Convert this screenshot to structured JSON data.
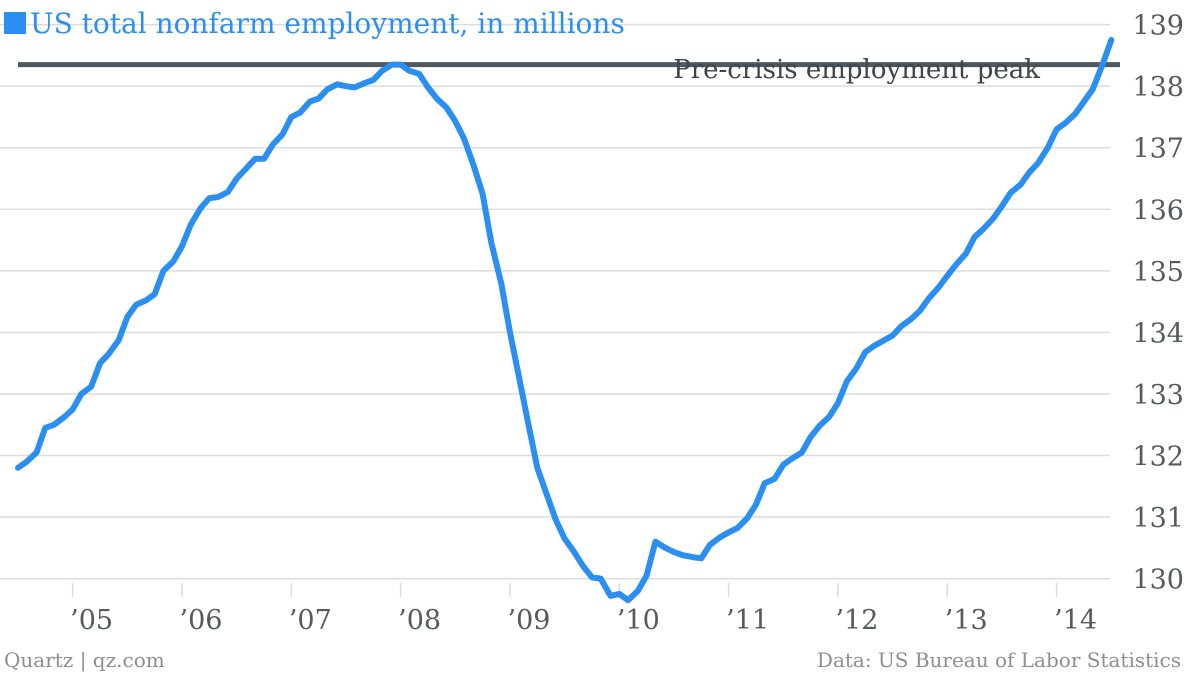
{
  "colors": {
    "series": "#2a8ff0",
    "reference_line": "#505860",
    "grid": "#dcdcdc",
    "text": "#555a5f",
    "footer": "#8a8f94"
  },
  "footer": {
    "source_left": "Quartz | qz.com",
    "source_right": "Data: US Bureau of Labor Statistics"
  },
  "chart_data": {
    "type": "line",
    "title": "US total nonfarm employment, in millions",
    "title_marker_color": "#2a8ff0",
    "xlabel": "",
    "ylabel": "",
    "ylim": [
      129.75,
      139.4
    ],
    "xlim": [
      2004.5,
      2014.58
    ],
    "y_axis_position": "right",
    "y_ticks": [
      130,
      131,
      132,
      133,
      134,
      135,
      136,
      137,
      138,
      139
    ],
    "x_ticks": [
      {
        "label": "’05",
        "value": 2005
      },
      {
        "label": "’06",
        "value": 2006
      },
      {
        "label": "’07",
        "value": 2007
      },
      {
        "label": "’08",
        "value": 2008
      },
      {
        "label": "’09",
        "value": 2009
      },
      {
        "label": "’10",
        "value": 2010
      },
      {
        "label": "’11",
        "value": 2011
      },
      {
        "label": "’12",
        "value": 2012
      },
      {
        "label": "’13",
        "value": 2013
      },
      {
        "label": "’14",
        "value": 2014
      }
    ],
    "grid": "horizontal",
    "reference_line": {
      "label": "Pre-crisis employment peak",
      "value": 138.35
    },
    "series": [
      {
        "color": "#2a8ff0",
        "x": [
          2004.5,
          2004.58,
          2004.67,
          2004.75,
          2004.83,
          2004.92,
          2005.0,
          2005.08,
          2005.17,
          2005.25,
          2005.33,
          2005.42,
          2005.5,
          2005.58,
          2005.67,
          2005.75,
          2005.83,
          2005.92,
          2006.0,
          2006.08,
          2006.17,
          2006.25,
          2006.33,
          2006.42,
          2006.5,
          2006.58,
          2006.67,
          2006.75,
          2006.83,
          2006.92,
          2007.0,
          2007.08,
          2007.17,
          2007.25,
          2007.33,
          2007.42,
          2007.5,
          2007.58,
          2007.67,
          2007.75,
          2007.83,
          2007.92,
          2008.0,
          2008.08,
          2008.17,
          2008.25,
          2008.33,
          2008.42,
          2008.5,
          2008.58,
          2008.67,
          2008.75,
          2008.83,
          2008.92,
          2009.0,
          2009.08,
          2009.17,
          2009.25,
          2009.33,
          2009.42,
          2009.5,
          2009.58,
          2009.67,
          2009.75,
          2009.83,
          2009.92,
          2010.0,
          2010.08,
          2010.17,
          2010.25,
          2010.33,
          2010.42,
          2010.5,
          2010.58,
          2010.67,
          2010.75,
          2010.83,
          2010.92,
          2011.0,
          2011.08,
          2011.17,
          2011.25,
          2011.33,
          2011.42,
          2011.5,
          2011.58,
          2011.67,
          2011.75,
          2011.83,
          2011.92,
          2012.0,
          2012.08,
          2012.17,
          2012.25,
          2012.33,
          2012.42,
          2012.5,
          2012.58,
          2012.67,
          2012.75,
          2012.83,
          2012.92,
          2013.0,
          2013.08,
          2013.17,
          2013.25,
          2013.33,
          2013.42,
          2013.5,
          2013.58,
          2013.67,
          2013.75,
          2013.83,
          2013.92,
          2014.0,
          2014.08,
          2014.17,
          2014.25,
          2014.33,
          2014.42,
          2014.5
        ],
        "values": [
          131.8,
          131.9,
          132.05,
          132.45,
          132.5,
          132.62,
          132.75,
          133.0,
          133.12,
          133.5,
          133.65,
          133.87,
          134.25,
          134.45,
          134.52,
          134.62,
          135.0,
          135.15,
          135.4,
          135.75,
          136.02,
          136.18,
          136.2,
          136.28,
          136.5,
          136.65,
          136.82,
          136.82,
          137.05,
          137.22,
          137.5,
          137.57,
          137.75,
          137.8,
          137.95,
          138.03,
          138.0,
          137.98,
          138.05,
          138.1,
          138.25,
          138.35,
          138.35,
          138.25,
          138.2,
          137.98,
          137.8,
          137.65,
          137.43,
          137.15,
          136.7,
          136.25,
          135.45,
          134.8,
          134.0,
          133.3,
          132.5,
          131.8,
          131.4,
          130.95,
          130.65,
          130.45,
          130.2,
          130.02,
          130.0,
          129.72,
          129.75,
          129.65,
          129.8,
          130.05,
          130.6,
          130.5,
          130.43,
          130.38,
          130.35,
          130.33,
          130.55,
          130.67,
          130.75,
          130.82,
          130.98,
          131.2,
          131.55,
          131.62,
          131.85,
          131.95,
          132.05,
          132.3,
          132.48,
          132.63,
          132.85,
          133.2,
          133.42,
          133.68,
          133.78,
          133.87,
          133.95,
          134.1,
          134.22,
          134.35,
          134.55,
          134.73,
          134.92,
          135.1,
          135.28,
          135.55,
          135.68,
          135.85,
          136.05,
          136.27,
          136.4,
          136.6,
          136.75,
          137.0,
          137.3,
          137.4,
          137.55,
          137.75,
          137.95,
          138.35,
          138.75
        ]
      }
    ]
  }
}
